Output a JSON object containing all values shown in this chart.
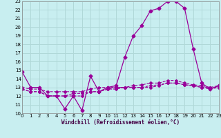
{
  "xlabel": "Windchill (Refroidissement éolien,°C)",
  "background_color": "#c8eef0",
  "grid_color": "#b0d8d8",
  "line_color": "#990099",
  "xmin": 0,
  "xmax": 23,
  "ymin": 10,
  "ymax": 23,
  "series": [
    {
      "x": [
        0,
        1,
        2,
        3,
        4,
        5,
        6,
        7,
        8,
        9,
        10,
        11,
        12,
        13,
        14,
        15,
        16,
        17,
        18,
        19,
        20,
        21,
        22,
        23
      ],
      "y": [
        14.8,
        13.0,
        13.0,
        12.0,
        12.0,
        10.5,
        12.0,
        10.3,
        14.3,
        12.5,
        13.0,
        13.2,
        16.5,
        19.0,
        20.2,
        21.9,
        22.2,
        23.0,
        23.0,
        22.2,
        17.5,
        13.5,
        12.8,
        13.2
      ],
      "solid": true
    },
    {
      "x": [
        0,
        1,
        2,
        3,
        4,
        5,
        6,
        7,
        8,
        9,
        10,
        11,
        12,
        13,
        14,
        15,
        16,
        17,
        18,
        19,
        20,
        21,
        22,
        23
      ],
      "y": [
        12.8,
        12.5,
        12.5,
        12.0,
        12.0,
        12.0,
        12.3,
        12.3,
        12.5,
        12.5,
        12.8,
        12.8,
        13.0,
        13.0,
        13.0,
        13.2,
        13.3,
        13.5,
        13.5,
        13.3,
        13.2,
        13.0,
        12.8,
        13.0
      ],
      "solid": false
    },
    {
      "x": [
        0,
        1,
        2,
        3,
        4,
        5,
        6,
        7,
        8,
        9,
        10,
        11,
        12,
        13,
        14,
        15,
        16,
        17,
        18,
        19,
        20,
        21,
        22,
        23
      ],
      "y": [
        12.8,
        12.5,
        12.5,
        12.0,
        12.0,
        12.0,
        12.0,
        12.0,
        12.5,
        12.5,
        12.8,
        13.0,
        13.0,
        13.0,
        13.0,
        13.0,
        13.2,
        13.5,
        13.5,
        13.3,
        13.2,
        13.0,
        13.0,
        13.0
      ],
      "solid": false
    },
    {
      "x": [
        0,
        1,
        2,
        3,
        4,
        5,
        6,
        7,
        8,
        9,
        10,
        11,
        12,
        13,
        14,
        15,
        16,
        17,
        18,
        19,
        20,
        21,
        22,
        23
      ],
      "y": [
        13.0,
        12.8,
        12.8,
        12.5,
        12.5,
        12.5,
        12.5,
        12.5,
        12.8,
        13.0,
        13.0,
        13.0,
        13.0,
        13.2,
        13.3,
        13.5,
        13.5,
        13.8,
        13.8,
        13.5,
        13.3,
        13.2,
        13.0,
        13.2
      ],
      "solid": false
    }
  ],
  "yticks": [
    10,
    11,
    12,
    13,
    14,
    15,
    16,
    17,
    18,
    19,
    20,
    21,
    22,
    23
  ],
  "xticks": [
    0,
    1,
    2,
    3,
    4,
    5,
    6,
    7,
    8,
    9,
    10,
    11,
    12,
    13,
    14,
    15,
    16,
    17,
    18,
    19,
    20,
    21,
    22,
    23
  ]
}
